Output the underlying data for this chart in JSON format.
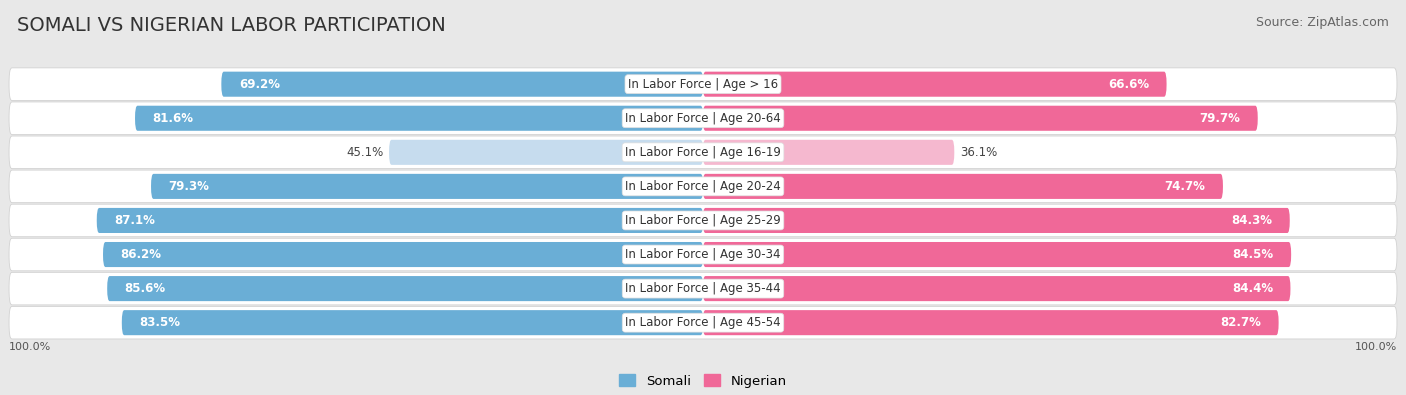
{
  "title": "SOMALI VS NIGERIAN LABOR PARTICIPATION",
  "source": "Source: ZipAtlas.com",
  "categories": [
    "In Labor Force | Age > 16",
    "In Labor Force | Age 20-64",
    "In Labor Force | Age 16-19",
    "In Labor Force | Age 20-24",
    "In Labor Force | Age 25-29",
    "In Labor Force | Age 30-34",
    "In Labor Force | Age 35-44",
    "In Labor Force | Age 45-54"
  ],
  "somali_values": [
    69.2,
    81.6,
    45.1,
    79.3,
    87.1,
    86.2,
    85.6,
    83.5
  ],
  "nigerian_values": [
    66.6,
    79.7,
    36.1,
    74.7,
    84.3,
    84.5,
    84.4,
    82.7
  ],
  "somali_color": "#6aaed6",
  "somali_color_light": "#c6dcee",
  "nigerian_color": "#f06898",
  "nigerian_color_light": "#f5b8cf",
  "bg_color": "#e8e8e8",
  "row_bg_color": "#f5f5f5",
  "row_bg_color_alt": "#ebebeb",
  "title_fontsize": 14,
  "source_fontsize": 9,
  "label_fontsize": 8.5,
  "value_fontsize": 8.5,
  "bar_height": 0.72,
  "max_value": 100.0,
  "light_row_index": 2
}
